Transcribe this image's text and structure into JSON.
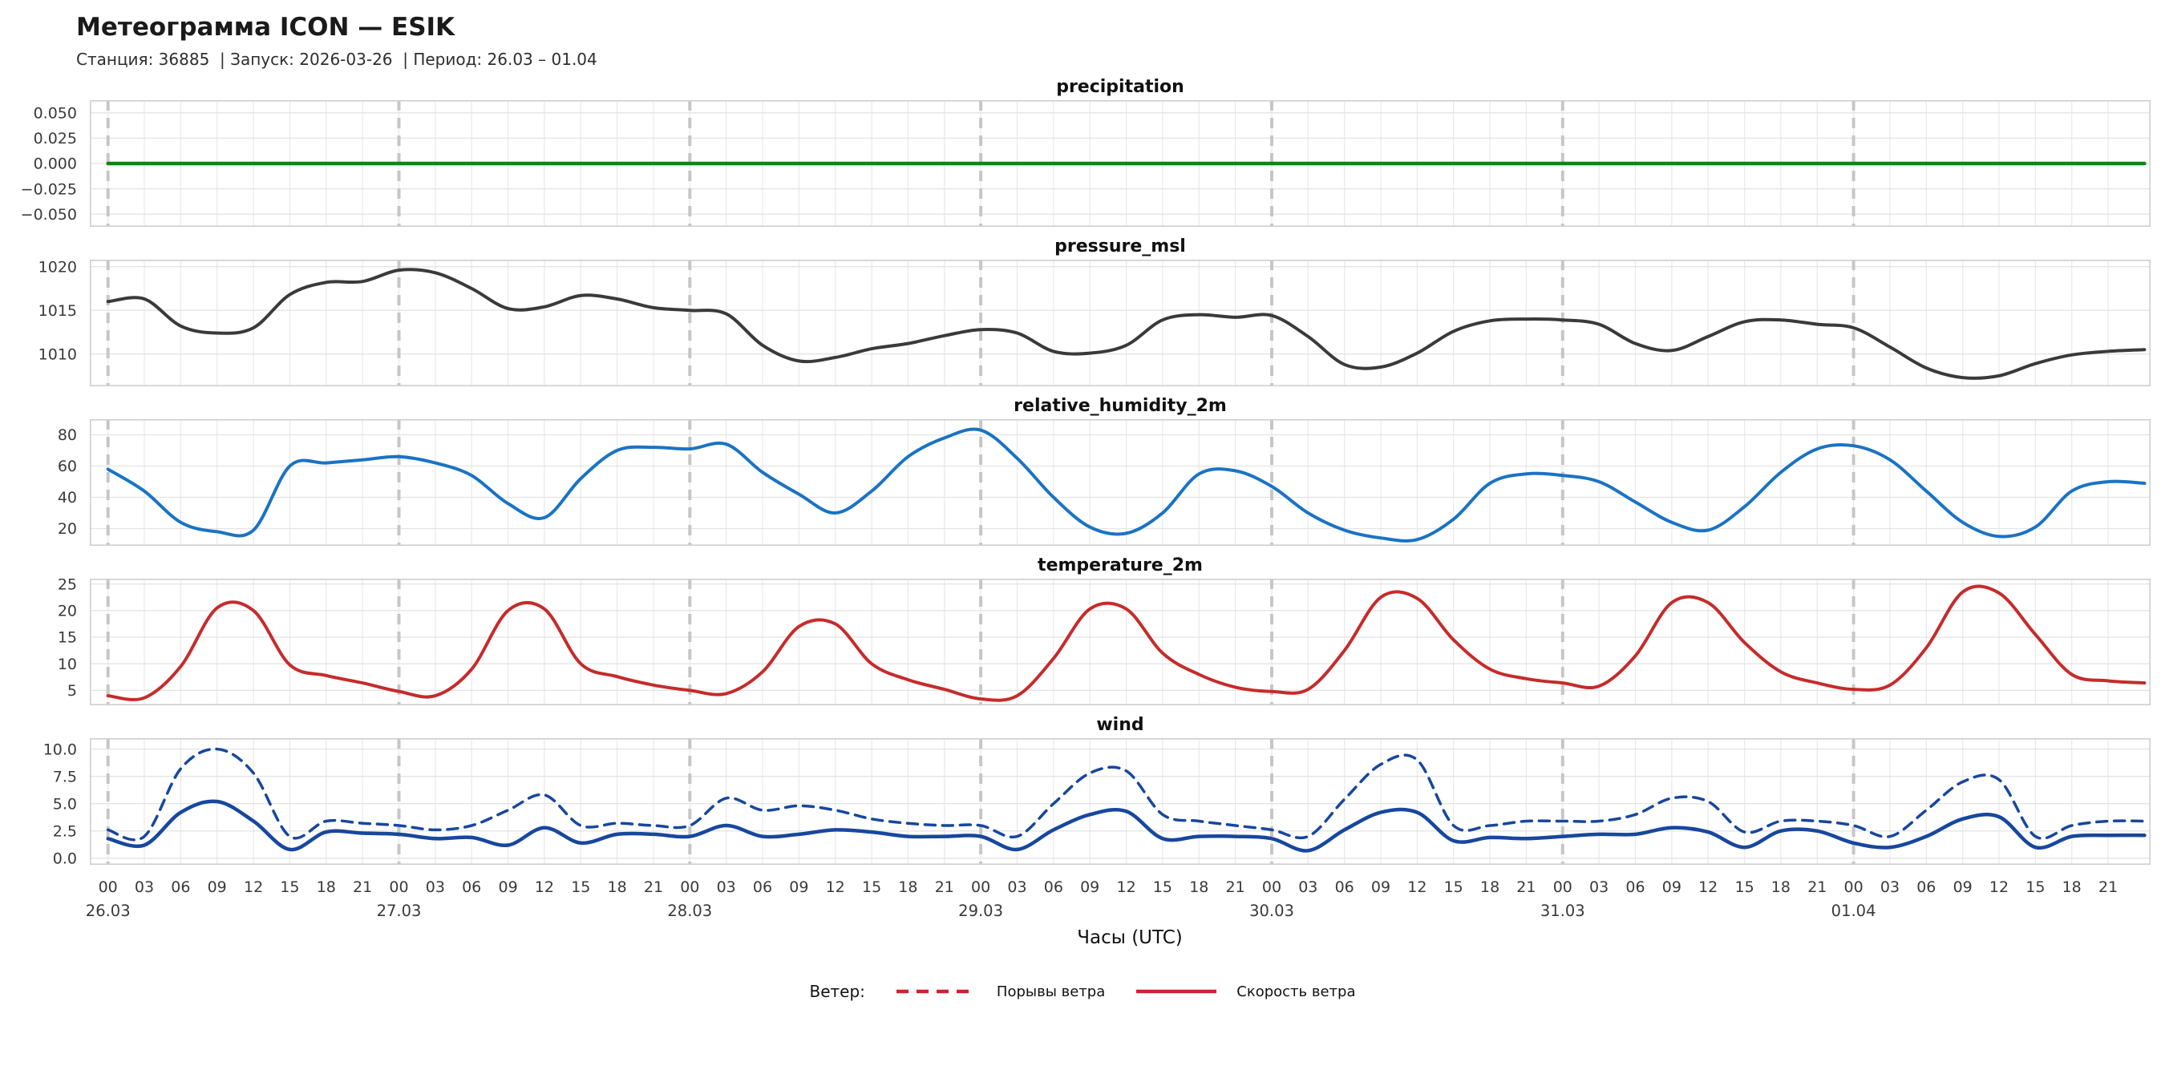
{
  "header": {
    "title": "Метеограмма ICON — ESIK",
    "subtitle": "Станция: 36885  | Запуск: 2026-03-26  | Период: 26.03 – 01.04"
  },
  "xaxis": {
    "label": "Часы (UTC)",
    "xmin": -1.5,
    "xmax": 168.5,
    "hour_step": 3,
    "tick_hours_max": 165,
    "hour_tick_labels": [
      "00",
      "03",
      "06",
      "09",
      "12",
      "15",
      "18",
      "21"
    ],
    "days": [
      "26.03",
      "27.03",
      "28.03",
      "29.03",
      "30.03",
      "31.03",
      "01.04"
    ],
    "grid_color": "#eaeaea",
    "day_line_color": "#c6c6c6",
    "tick_color": "#3a3a3a"
  },
  "legend": {
    "prefix": "Ветер:",
    "items": [
      {
        "label": "Порывы ветра",
        "style": "dashed",
        "color": "#cc2233"
      },
      {
        "label": "Скорость ветра",
        "style": "solid",
        "color": "#cc2233"
      }
    ]
  },
  "chart_data": [
    {
      "type": "line",
      "title": "precipitation",
      "x_start_hour": 0,
      "x_step_hours": 3,
      "ylim": [
        -0.0625,
        0.0625
      ],
      "yticks": [
        {
          "v": 0.05,
          "label": "0.050"
        },
        {
          "v": 0.025,
          "label": "0.025"
        },
        {
          "v": 0.0,
          "label": "0.000"
        },
        {
          "v": -0.025,
          "label": "−0.025"
        },
        {
          "v": -0.05,
          "label": "−0.050"
        }
      ],
      "series": [
        {
          "name": "precipitation",
          "color": "#128412",
          "width": 4.5,
          "dash": null,
          "values": [
            0,
            0,
            0,
            0,
            0,
            0,
            0,
            0,
            0,
            0,
            0,
            0,
            0,
            0,
            0,
            0,
            0,
            0,
            0,
            0,
            0,
            0,
            0,
            0,
            0,
            0,
            0,
            0,
            0,
            0,
            0,
            0,
            0,
            0,
            0,
            0,
            0,
            0,
            0,
            0,
            0,
            0,
            0,
            0,
            0,
            0,
            0,
            0,
            0,
            0,
            0,
            0,
            0,
            0,
            0,
            0,
            0
          ]
        }
      ]
    },
    {
      "type": "line",
      "title": "pressure_msl",
      "x_start_hour": 0,
      "x_step_hours": 3,
      "ylim": [
        1006.3,
        1020.8
      ],
      "yticks": [
        {
          "v": 1020,
          "label": "1020"
        },
        {
          "v": 1015,
          "label": "1015"
        },
        {
          "v": 1010,
          "label": "1010"
        }
      ],
      "series": [
        {
          "name": "pressure_msl",
          "color": "#3a3a3a",
          "width": 4,
          "dash": null,
          "values": [
            1016.0,
            1016.3,
            1013.2,
            1012.4,
            1013.0,
            1016.8,
            1018.2,
            1018.3,
            1019.6,
            1019.3,
            1017.5,
            1015.2,
            1015.4,
            1016.7,
            1016.3,
            1015.3,
            1015.0,
            1014.6,
            1011.0,
            1009.2,
            1009.6,
            1010.6,
            1011.2,
            1012.1,
            1012.8,
            1012.4,
            1010.3,
            1010.1,
            1011.0,
            1013.9,
            1014.5,
            1014.2,
            1014.4,
            1012.0,
            1008.8,
            1008.5,
            1010.1,
            1012.6,
            1013.8,
            1014.0,
            1013.9,
            1013.4,
            1011.2,
            1010.4,
            1012.0,
            1013.7,
            1013.9,
            1013.4,
            1013.0,
            1010.8,
            1008.4,
            1007.3,
            1007.5,
            1008.9,
            1009.9,
            1010.3,
            1010.5
          ]
        }
      ]
    },
    {
      "type": "line",
      "title": "relative_humidity_2m",
      "x_start_hour": 0,
      "x_step_hours": 3,
      "ylim": [
        9,
        90
      ],
      "yticks": [
        {
          "v": 80,
          "label": "80"
        },
        {
          "v": 60,
          "label": "60"
        },
        {
          "v": 40,
          "label": "40"
        },
        {
          "v": 20,
          "label": "20"
        }
      ],
      "series": [
        {
          "name": "relative_humidity_2m",
          "color": "#1a73c4",
          "width": 4,
          "dash": null,
          "values": [
            58,
            44,
            24,
            18,
            19,
            60,
            62,
            64,
            66,
            62,
            54,
            36,
            27,
            52,
            70,
            72,
            71,
            74,
            56,
            42,
            30,
            44,
            66,
            78,
            83,
            65,
            40,
            21,
            17,
            30,
            55,
            57,
            47,
            30,
            19,
            14,
            13,
            26,
            49,
            55,
            54,
            50,
            37,
            24,
            19,
            34,
            56,
            71,
            73,
            64,
            44,
            24,
            15,
            21,
            44,
            50,
            49
          ]
        }
      ]
    },
    {
      "type": "line",
      "title": "temperature_2m",
      "x_start_hour": 0,
      "x_step_hours": 3,
      "ylim": [
        2.2,
        26
      ],
      "yticks": [
        {
          "v": 25,
          "label": "25"
        },
        {
          "v": 20,
          "label": "20"
        },
        {
          "v": 15,
          "label": "15"
        },
        {
          "v": 10,
          "label": "10"
        },
        {
          "v": 5,
          "label": "5"
        }
      ],
      "series": [
        {
          "name": "temperature_2m",
          "color": "#c62b2b",
          "width": 4,
          "dash": null,
          "values": [
            4.0,
            3.6,
            9.5,
            20.5,
            20.0,
            9.8,
            7.8,
            6.4,
            4.8,
            4.0,
            9.0,
            20.0,
            20.3,
            10.0,
            7.6,
            6.0,
            5.0,
            4.4,
            8.5,
            17.0,
            17.5,
            10.0,
            7.0,
            5.2,
            3.4,
            4.0,
            11.0,
            20.3,
            20.3,
            12.0,
            8.0,
            5.6,
            4.8,
            5.2,
            12.5,
            22.5,
            22.3,
            14.5,
            9.0,
            7.2,
            6.4,
            5.8,
            11.5,
            21.5,
            21.5,
            14.0,
            8.5,
            6.4,
            5.2,
            6.0,
            13.0,
            23.5,
            23.3,
            15.5,
            8.0,
            6.8,
            6.4
          ]
        }
      ]
    },
    {
      "type": "line",
      "title": "wind",
      "x_start_hour": 0,
      "x_step_hours": 3,
      "ylim": [
        -0.6,
        11
      ],
      "yticks": [
        {
          "v": 10,
          "label": "10.0"
        },
        {
          "v": 7.5,
          "label": "7.5"
        },
        {
          "v": 5,
          "label": "5.0"
        },
        {
          "v": 2.5,
          "label": "2.5"
        },
        {
          "v": 0,
          "label": "0.0"
        }
      ],
      "series": [
        {
          "name": "Порывы ветра",
          "color": "#17479e",
          "width": 3.5,
          "dash": "13 9",
          "values": [
            2.6,
            2.0,
            8.2,
            10.0,
            7.8,
            2.0,
            3.4,
            3.2,
            3.0,
            2.6,
            3.0,
            4.4,
            5.8,
            3.0,
            3.2,
            3.0,
            3.0,
            5.5,
            4.4,
            4.8,
            4.4,
            3.6,
            3.2,
            3.0,
            3.0,
            2.0,
            5.0,
            7.8,
            8.0,
            4.0,
            3.4,
            3.0,
            2.6,
            2.0,
            5.4,
            8.6,
            9.0,
            3.0,
            3.0,
            3.4,
            3.4,
            3.4,
            4.0,
            5.5,
            5.2,
            2.4,
            3.4,
            3.4,
            3.0,
            2.0,
            4.4,
            7.0,
            7.2,
            2.0,
            3.0,
            3.4,
            3.4
          ]
        },
        {
          "name": "Скорость ветра",
          "color": "#17479e",
          "width": 4.5,
          "dash": null,
          "values": [
            1.8,
            1.2,
            4.2,
            5.2,
            3.4,
            0.8,
            2.4,
            2.3,
            2.2,
            1.8,
            1.9,
            1.2,
            2.8,
            1.4,
            2.2,
            2.2,
            2.0,
            3.0,
            2.0,
            2.2,
            2.6,
            2.4,
            2.0,
            2.0,
            2.0,
            0.8,
            2.6,
            4.0,
            4.3,
            1.8,
            2.0,
            2.0,
            1.8,
            0.7,
            2.6,
            4.2,
            4.2,
            1.6,
            1.9,
            1.8,
            2.0,
            2.2,
            2.2,
            2.8,
            2.4,
            1.0,
            2.5,
            2.5,
            1.4,
            1.0,
            2.0,
            3.6,
            3.8,
            1.0,
            2.0,
            2.1,
            2.1
          ]
        }
      ]
    }
  ]
}
